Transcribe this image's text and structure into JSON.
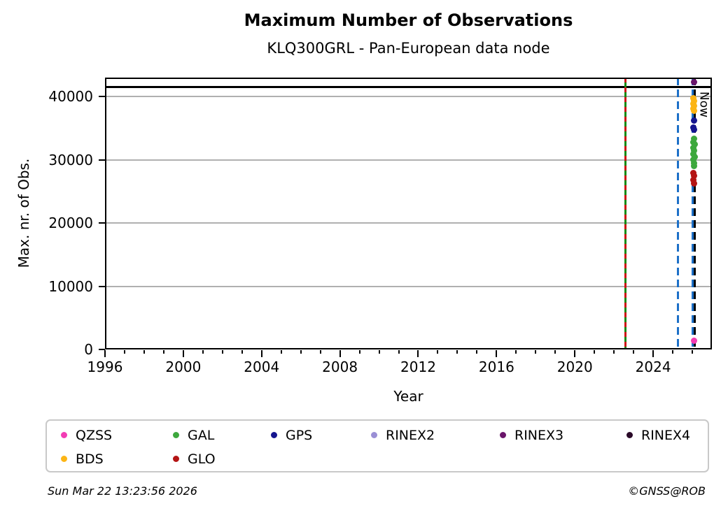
{
  "title": "Maximum Number of Observations",
  "subtitle": "KLQ300GRL - Pan-European data node",
  "footer": {
    "timestamp": "Sun Mar 22 13:23:56 2026",
    "credit": "©GNSS@ROB"
  },
  "chart_data": {
    "type": "scatter",
    "title": "Maximum Number of Observations",
    "subtitle": "KLQ300GRL - Pan-European data node",
    "xlabel": "Year",
    "ylabel": "Max. nr. of Obs.",
    "xlim": [
      1996,
      2027
    ],
    "ylim": [
      0,
      43000
    ],
    "xticks_major": [
      1996,
      2000,
      2004,
      2008,
      2012,
      2016,
      2020,
      2024
    ],
    "xticks_minor_step": 1,
    "yticks": [
      0,
      10000,
      20000,
      30000,
      40000
    ],
    "grid": {
      "axis": "y",
      "color": "#b0b0b0"
    },
    "legend_position": "bottom",
    "series": [
      {
        "name": "QZSS",
        "color": "#f23cb4",
        "points": [
          [
            2026.08,
            1400
          ]
        ]
      },
      {
        "name": "BDS",
        "color": "#fcb515",
        "points": [
          [
            2026.06,
            39700
          ],
          [
            2026.1,
            39300
          ],
          [
            2026.04,
            38900
          ],
          [
            2026.09,
            38500
          ],
          [
            2026.05,
            38100
          ],
          [
            2026.1,
            37800
          ]
        ]
      },
      {
        "name": "GAL",
        "color": "#3da83d",
        "points": [
          [
            2026.08,
            33300
          ],
          [
            2026.05,
            32800
          ],
          [
            2026.11,
            32400
          ],
          [
            2026.06,
            31900
          ],
          [
            2026.09,
            31400
          ],
          [
            2026.05,
            30900
          ],
          [
            2026.11,
            30500
          ],
          [
            2026.06,
            30000
          ],
          [
            2026.09,
            29500
          ],
          [
            2026.08,
            29000
          ]
        ]
      },
      {
        "name": "GPS",
        "color": "#15158f",
        "points": [
          [
            2026.09,
            36200
          ],
          [
            2026.05,
            35100
          ],
          [
            2026.09,
            34800
          ]
        ]
      },
      {
        "name": "GLO",
        "color": "#b41414",
        "points": [
          [
            2026.06,
            27900
          ],
          [
            2026.1,
            27500
          ],
          [
            2026.06,
            26800
          ],
          [
            2026.09,
            26300
          ]
        ]
      },
      {
        "name": "RINEX2",
        "color": "#9a8fd5",
        "points": []
      },
      {
        "name": "RINEX3",
        "color": "#6a156a",
        "points": [
          [
            2026.08,
            42300
          ]
        ]
      },
      {
        "name": "RINEX4",
        "color": "#2a0a28",
        "points": []
      }
    ],
    "vlines": [
      {
        "name": "green-solid-line",
        "x": 2022.6,
        "color": "#148a14",
        "style": "solid"
      },
      {
        "name": "red-dashed-overlay-line",
        "x": 2022.6,
        "color": "#cc1414",
        "style": "dashed-short"
      },
      {
        "name": "blue-dashed-line-1",
        "x": 2025.25,
        "color": "#1d70c8",
        "style": "dashed"
      },
      {
        "name": "blue-dashed-line-2",
        "x": 2026.0,
        "color": "#1d70c8",
        "style": "dashed"
      },
      {
        "name": "now-line",
        "x": 2026.12,
        "color": "#000000",
        "style": "dashed",
        "label": "Now"
      }
    ],
    "hlines": [
      {
        "name": "max-reference-line",
        "y": 41500,
        "color": "#000000",
        "style": "solid"
      }
    ]
  },
  "legend": {
    "items": [
      {
        "label": "QZSS",
        "color": "#f23cb4"
      },
      {
        "label": "GAL",
        "color": "#3da83d"
      },
      {
        "label": "GPS",
        "color": "#15158f"
      },
      {
        "label": "RINEX2",
        "color": "#9a8fd5"
      },
      {
        "label": "RINEX3",
        "color": "#6a156a"
      },
      {
        "label": "RINEX4",
        "color": "#2a0a28"
      },
      {
        "label": "BDS",
        "color": "#fcb515"
      },
      {
        "label": "GLO",
        "color": "#b41414"
      }
    ]
  }
}
